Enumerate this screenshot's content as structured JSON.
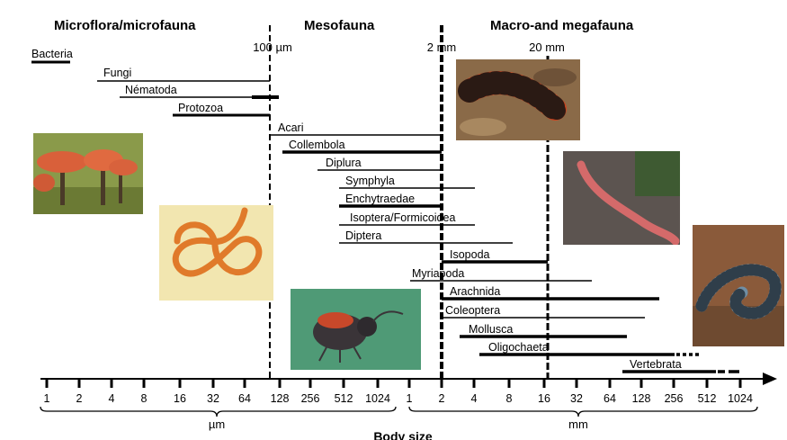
{
  "headings": {
    "micro": "Microflora/microfauna",
    "meso": "Mesofauna",
    "macro": "Macro-and megafauna"
  },
  "markers": {
    "m100um": "100 µm",
    "m2mm": "2 mm",
    "m20mm": "20 mm"
  },
  "axis": {
    "title": "Body size",
    "unit_um": "µm",
    "unit_mm": "mm",
    "ticks_um": [
      "1",
      "2",
      "4",
      "8",
      "16",
      "32",
      "64",
      "128",
      "256",
      "512",
      "1024"
    ],
    "ticks_mm": [
      "1",
      "2",
      "4",
      "8",
      "16",
      "32",
      "64",
      "128",
      "256",
      "512",
      "1024"
    ]
  },
  "groups": [
    {
      "label": "Bacteria",
      "min": "0.9 µm",
      "max": "2 µm"
    },
    {
      "label": "Fungi",
      "min": "3 µm",
      "max": "100 µm"
    },
    {
      "label": "Nématoda",
      "min": "4 µm",
      "max": "0.12 mm"
    },
    {
      "label": "Protozoa",
      "min": "13 µm",
      "max": "100 µm"
    },
    {
      "label": "Acari",
      "min": "100 µm",
      "max": "2 mm"
    },
    {
      "label": "Collembola",
      "min": "130 µm",
      "max": "2 mm"
    },
    {
      "label": "Diplura",
      "min": "270 µm",
      "max": "2 mm"
    },
    {
      "label": "Symphyla",
      "min": "420 µm",
      "max": "4 mm"
    },
    {
      "label": "Enchytraedae",
      "min": "420 µm",
      "max": "2 mm"
    },
    {
      "label": "Isoptera/Formicoidea",
      "min": "420 µm",
      "max": "4 mm"
    },
    {
      "label": "Diptera",
      "min": "420 µm",
      "max": "10 mm"
    },
    {
      "label": "Isopoda",
      "min": "2 mm",
      "max": "16 mm"
    },
    {
      "label": "Myriapoda",
      "min": "1 mm",
      "max": "48 mm"
    },
    {
      "label": "Arachnida",
      "min": "2 mm",
      "max": "200 mm"
    },
    {
      "label": "Coleoptera",
      "min": "2 mm",
      "max": "140 mm"
    },
    {
      "label": "Mollusca",
      "min": "3 mm",
      "max": "90 mm"
    },
    {
      "label": "Oligochaeta",
      "min": "4.5 mm",
      "max": ">256 mm"
    },
    {
      "label": "Vertebrata",
      "min": "80 mm",
      "max": "1024 mm"
    }
  ]
}
